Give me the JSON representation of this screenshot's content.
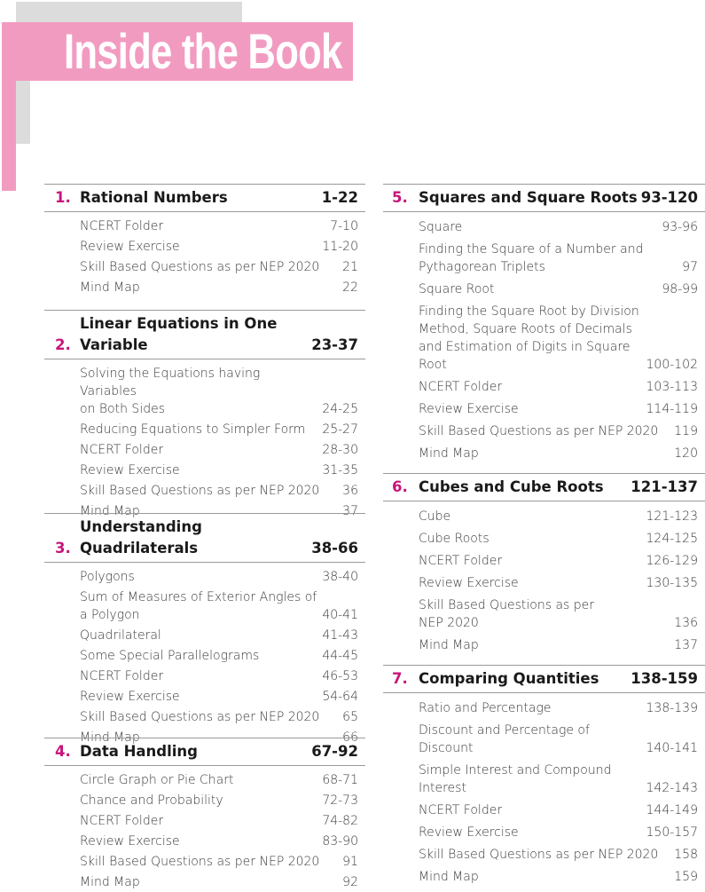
{
  "title": "Inside the Book",
  "colors": {
    "accent_pink": "#f29bc1",
    "chapter_number": "#c8157a",
    "gray_block": "#dcdcdd"
  },
  "left_chapters": [
    {
      "number": "1.",
      "title": "Rational Numbers",
      "pages": "1-22",
      "items": [
        {
          "text": "NCERT Folder",
          "pages": "7-10"
        },
        {
          "text": "Review Exercise",
          "pages": "11-20"
        },
        {
          "text": "Skill Based Questions as per NEP 2020",
          "pages": "21"
        },
        {
          "text": "Mind Map",
          "pages": "22"
        }
      ]
    },
    {
      "number": "2.",
      "title": "Linear Equations in One\nVariable",
      "pages": "23-37",
      "items": [
        {
          "text": "Solving the Equations having Variables\non Both Sides",
          "pages": "24-25"
        },
        {
          "text": "Reducing Equations to Simpler Form",
          "pages": "25-27"
        },
        {
          "text": "NCERT Folder",
          "pages": "28-30"
        },
        {
          "text": "Review Exercise",
          "pages": "31-35"
        },
        {
          "text": "Skill Based Questions as per NEP 2020",
          "pages": "36"
        },
        {
          "text": "Mind Map",
          "pages": "37"
        }
      ]
    },
    {
      "number": "3.",
      "title": "Understanding Quadrilaterals",
      "pages": "38-66",
      "items": [
        {
          "text": "Polygons",
          "pages": "38-40"
        },
        {
          "text": "Sum of Measures of Exterior Angles of\na Polygon",
          "pages": "40-41"
        },
        {
          "text": "Quadrilateral",
          "pages": "41-43"
        },
        {
          "text": "Some Special Parallelograms",
          "pages": "44-45"
        },
        {
          "text": "NCERT Folder",
          "pages": "46-53"
        },
        {
          "text": "Review Exercise",
          "pages": "54-64"
        },
        {
          "text": "Skill Based Questions as per NEP 2020",
          "pages": "65"
        },
        {
          "text": "Mind Map",
          "pages": "66"
        }
      ]
    },
    {
      "number": "4.",
      "title": "Data Handling",
      "pages": "67-92",
      "items": [
        {
          "text": "Circle Graph or Pie Chart",
          "pages": "68-71"
        },
        {
          "text": "Chance and Probability",
          "pages": "72-73"
        },
        {
          "text": "NCERT Folder",
          "pages": "74-82"
        },
        {
          "text": "Review Exercise",
          "pages": "83-90"
        },
        {
          "text": "Skill Based Questions as per NEP 2020",
          "pages": "91"
        },
        {
          "text": "Mind Map",
          "pages": "92"
        }
      ]
    }
  ],
  "right_chapters": [
    {
      "number": "5.",
      "title": "Squares and Square Roots",
      "pages": "93-120",
      "items": [
        {
          "text": "Square",
          "pages": "93-96"
        },
        {
          "text": "Finding the Square of a Number and\nPythagorean Triplets",
          "pages": "97"
        },
        {
          "text": "Square Root",
          "pages": "98-99"
        },
        {
          "text": "Finding the Square Root by Division\nMethod, Square Roots of Decimals\nand Estimation of Digits in Square\nRoot",
          "pages": "100-102"
        },
        {
          "text": "NCERT Folder",
          "pages": "103-113"
        },
        {
          "text": "Review Exercise",
          "pages": "114-119"
        },
        {
          "text": "Skill Based Questions as per NEP 2020",
          "pages": "119"
        },
        {
          "text": "Mind Map",
          "pages": "120"
        }
      ]
    },
    {
      "number": "6.",
      "title": "Cubes and Cube Roots",
      "pages": "121-137",
      "items": [
        {
          "text": "Cube",
          "pages": "121-123"
        },
        {
          "text": "Cube Roots",
          "pages": "124-125"
        },
        {
          "text": "NCERT Folder",
          "pages": "126-129"
        },
        {
          "text": "Review Exercise",
          "pages": "130-135"
        },
        {
          "text": "Skill Based Questions as per\nNEP 2020",
          "pages": "136"
        },
        {
          "text": "Mind Map",
          "pages": "137"
        }
      ]
    },
    {
      "number": "7.",
      "title": "Comparing Quantities",
      "pages": "138-159",
      "items": [
        {
          "text": "Ratio and Percentage",
          "pages": "138-139"
        },
        {
          "text": "Discount and Percentage of Discount",
          "pages": "140-141"
        },
        {
          "text": "Simple Interest and Compound\nInterest",
          "pages": "142-143"
        },
        {
          "text": "NCERT Folder",
          "pages": "144-149"
        },
        {
          "text": "Review Exercise",
          "pages": "150-157"
        },
        {
          "text": "Skill Based Questions as per NEP 2020",
          "pages": "158"
        },
        {
          "text": "Mind Map",
          "pages": "159"
        }
      ]
    }
  ]
}
